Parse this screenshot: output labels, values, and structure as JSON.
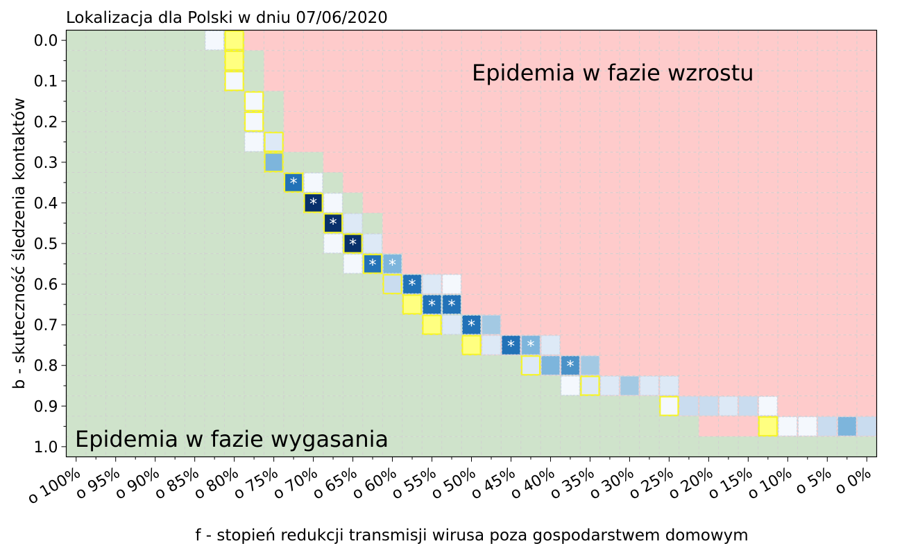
{
  "chart_data": {
    "type": "heatmap",
    "title": "Lokalizacja dla Polski w dniu 07/06/2020",
    "xlabel": "f - stopień redukcji transmisji wirusa poza gospodarstwem domowym",
    "ylabel": "b - skuteczność śledzenia kontaktów",
    "x_tick_labels": [
      "o 100%",
      "o 95%",
      "o 90%",
      "o 85%",
      "o 80%",
      "o 75%",
      "o 70%",
      "o 65%",
      "o 60%",
      "o 55%",
      "o 50%",
      "o 45%",
      "o 40%",
      "o 35%",
      "o 30%",
      "o 25%",
      "o 20%",
      "o 15%",
      "o 10%",
      "o 5%",
      "o 0%"
    ],
    "y_tick_labels": [
      "0.0",
      "0.1",
      "0.2",
      "0.3",
      "0.4",
      "0.5",
      "0.6",
      "0.7",
      "0.8",
      "0.9",
      "1.0"
    ],
    "n_cols": 41,
    "n_rows": 21,
    "region_labels": {
      "growth": "Epidemia w fazie wzrostu",
      "decline": "Epidemia w fazie wygasania"
    },
    "star_symbol": "*",
    "colors": {
      "growth": "#fecbcb",
      "decline": "#cfe3cb",
      "boundary_outline": "#f5f52a",
      "boundary_fill": "#ffff80",
      "grid": "#d0d0d0",
      "intensity_scale": [
        "#f4f8fd",
        "#dde9f6",
        "#c9dcef",
        "#a3c9e3",
        "#7db5dc",
        "#4a92c8",
        "#2272b7",
        "#0c4c94",
        "#08306b"
      ]
    },
    "boundary_row_start_col": [
      9,
      10,
      10,
      11,
      11,
      11,
      13,
      14,
      15,
      16,
      16,
      17,
      18,
      20,
      21,
      21,
      24,
      27,
      30,
      32,
      41
    ],
    "cells": [
      {
        "row": 0,
        "col": 7,
        "v": 0.03
      },
      {
        "row": 0,
        "col": 8,
        "v": 0,
        "edge": true
      },
      {
        "row": 1,
        "col": 8,
        "v": 0,
        "edge": true
      },
      {
        "row": 2,
        "col": 8,
        "v": 0.03,
        "edge": true
      },
      {
        "row": 3,
        "col": 9,
        "v": 0.03,
        "edge": true
      },
      {
        "row": 4,
        "col": 9,
        "v": 0.05,
        "edge": true
      },
      {
        "row": 5,
        "col": 9,
        "v": 0.03
      },
      {
        "row": 5,
        "col": 10,
        "v": 0.15,
        "edge": true
      },
      {
        "row": 6,
        "col": 10,
        "v": 0.45,
        "edge": true
      },
      {
        "row": 7,
        "col": 11,
        "v": 0.8,
        "edge": true,
        "star": true
      },
      {
        "row": 7,
        "col": 12,
        "v": 0.03
      },
      {
        "row": 8,
        "col": 12,
        "v": 1.0,
        "edge": true,
        "star": true
      },
      {
        "row": 8,
        "col": 13,
        "v": 0.05
      },
      {
        "row": 9,
        "col": 13,
        "v": 1.0,
        "edge": true,
        "star": true
      },
      {
        "row": 9,
        "col": 14,
        "v": 0.1
      },
      {
        "row": 10,
        "col": 13,
        "v": 0.03
      },
      {
        "row": 10,
        "col": 14,
        "v": 1.0,
        "edge": true,
        "star": true
      },
      {
        "row": 10,
        "col": 15,
        "v": 0.12
      },
      {
        "row": 11,
        "col": 14,
        "v": 0.03
      },
      {
        "row": 11,
        "col": 15,
        "v": 0.7,
        "edge": true,
        "star": true
      },
      {
        "row": 11,
        "col": 16,
        "v": 0.5,
        "star": true
      },
      {
        "row": 12,
        "col": 16,
        "v": 0.3,
        "edge": true
      },
      {
        "row": 12,
        "col": 17,
        "v": 0.75,
        "star": true
      },
      {
        "row": 12,
        "col": 18,
        "v": 0.12
      },
      {
        "row": 12,
        "col": 19,
        "v": 0.05
      },
      {
        "row": 13,
        "col": 17,
        "v": 0,
        "edge": true
      },
      {
        "row": 13,
        "col": 18,
        "v": 0.7,
        "star": true
      },
      {
        "row": 13,
        "col": 19,
        "v": 0.7,
        "star": true
      },
      {
        "row": 14,
        "col": 18,
        "v": 0,
        "edge": true
      },
      {
        "row": 14,
        "col": 19,
        "v": 0.12
      },
      {
        "row": 14,
        "col": 20,
        "v": 0.75,
        "star": true
      },
      {
        "row": 14,
        "col": 21,
        "v": 0.4
      },
      {
        "row": 15,
        "col": 20,
        "v": 0,
        "edge": true
      },
      {
        "row": 15,
        "col": 21,
        "v": 0.1
      },
      {
        "row": 15,
        "col": 22,
        "v": 0.75,
        "star": true
      },
      {
        "row": 15,
        "col": 23,
        "v": 0.55,
        "star": true
      },
      {
        "row": 15,
        "col": 24,
        "v": 0.12
      },
      {
        "row": 16,
        "col": 23,
        "v": 0.12,
        "edge": true
      },
      {
        "row": 16,
        "col": 24,
        "v": 0.45
      },
      {
        "row": 16,
        "col": 25,
        "v": 0.6,
        "star": true
      },
      {
        "row": 16,
        "col": 26,
        "v": 0.4
      },
      {
        "row": 17,
        "col": 25,
        "v": 0.03
      },
      {
        "row": 17,
        "col": 26,
        "v": 0.12,
        "edge": true
      },
      {
        "row": 17,
        "col": 27,
        "v": 0.15
      },
      {
        "row": 17,
        "col": 28,
        "v": 0.4
      },
      {
        "row": 17,
        "col": 29,
        "v": 0.1
      },
      {
        "row": 17,
        "col": 30,
        "v": 0.12
      },
      {
        "row": 18,
        "col": 30,
        "v": 0.03,
        "edge": true
      },
      {
        "row": 18,
        "col": 31,
        "v": 0.2
      },
      {
        "row": 18,
        "col": 32,
        "v": 0.25
      },
      {
        "row": 18,
        "col": 33,
        "v": 0.12
      },
      {
        "row": 18,
        "col": 34,
        "v": 0.2
      },
      {
        "row": 18,
        "col": 35,
        "v": 0.03
      },
      {
        "row": 19,
        "col": 35,
        "v": 0,
        "edge": true
      },
      {
        "row": 19,
        "col": 36,
        "v": 0.03
      },
      {
        "row": 19,
        "col": 37,
        "v": 0.03
      },
      {
        "row": 19,
        "col": 38,
        "v": 0.3
      },
      {
        "row": 19,
        "col": 39,
        "v": 0.45
      },
      {
        "row": 19,
        "col": 40,
        "v": 0.25
      }
    ]
  }
}
